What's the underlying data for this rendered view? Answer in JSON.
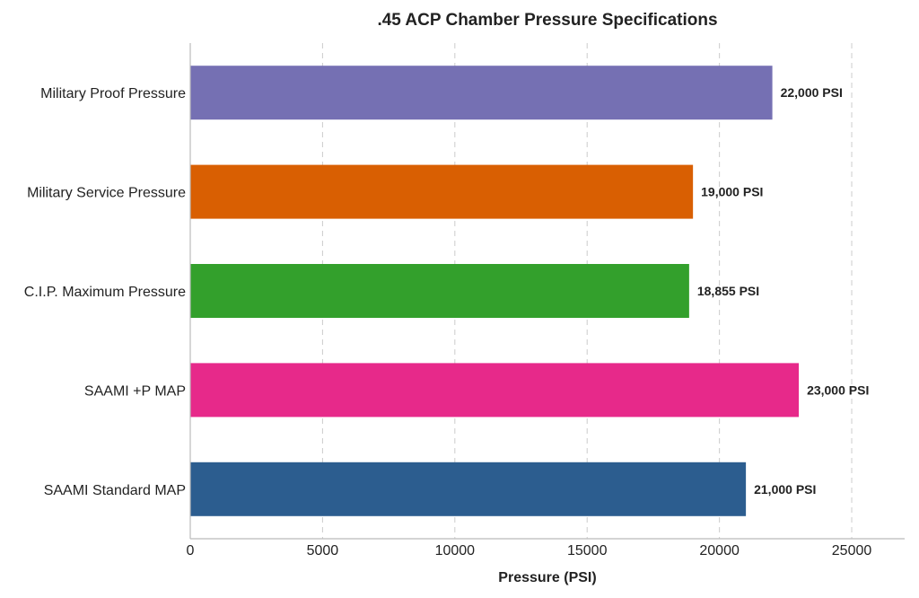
{
  "chart_data": {
    "type": "bar",
    "orientation": "horizontal",
    "title": ".45 ACP Chamber Pressure Specifications",
    "xlabel": "Pressure (PSI)",
    "ylabel": "",
    "xlim": [
      0,
      27000
    ],
    "xticks": [
      0,
      5000,
      10000,
      15000,
      20000,
      25000
    ],
    "grid": "x-dashed",
    "categories": [
      "Military Proof Pressure",
      "Military Service Pressure",
      "C.I.P. Maximum Pressure",
      "SAAMI +P MAP",
      "SAAMI Standard MAP"
    ],
    "values": [
      22000,
      19000,
      18855,
      23000,
      21000
    ],
    "value_labels": [
      "22,000 PSI",
      "19,000 PSI",
      "18,855 PSI",
      "23,000 PSI",
      "21,000 PSI"
    ],
    "colors": [
      "#7570b3",
      "#d95f02",
      "#33a02c",
      "#e7298a",
      "#2c5d8f"
    ]
  }
}
